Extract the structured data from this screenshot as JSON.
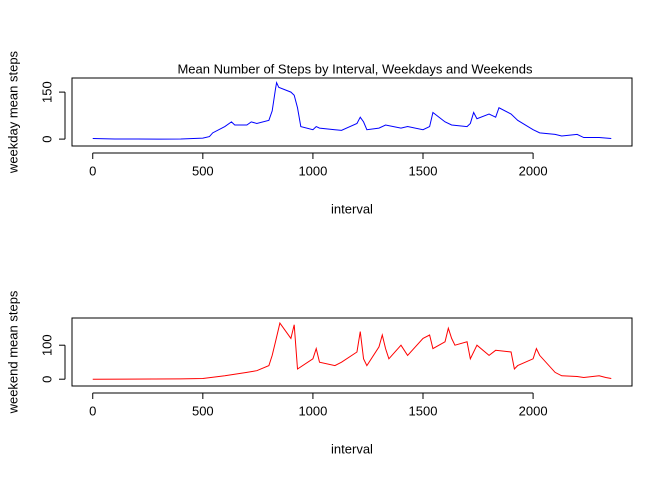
{
  "chart_data": [
    {
      "type": "line",
      "title": "Mean Number of Steps by Interval, Weekdays and Weekends",
      "x_label": "interval",
      "y_label": "weekday mean steps",
      "xlim": [
        -94.2,
        2449.2
      ],
      "xticks": [
        0,
        500,
        1000,
        1500,
        2000
      ],
      "ylim": [
        -22,
        195
      ],
      "yticks": [
        0,
        150
      ],
      "x": [
        0,
        100,
        200,
        300,
        400,
        500,
        530,
        545,
        600,
        630,
        645,
        700,
        720,
        745,
        800,
        815,
        830,
        835,
        845,
        900,
        915,
        930,
        945,
        1000,
        1015,
        1030,
        1100,
        1130,
        1200,
        1215,
        1230,
        1245,
        1300,
        1330,
        1400,
        1430,
        1500,
        1530,
        1545,
        1600,
        1630,
        1700,
        1715,
        1730,
        1745,
        1800,
        1830,
        1845,
        1900,
        1930,
        2000,
        2030,
        2100,
        2130,
        2200,
        2230,
        2300,
        2355
      ],
      "series": [
        {
          "name": "weekday",
          "color": "#0000ff",
          "values": [
            2,
            0.5,
            0.3,
            0.1,
            0.5,
            3,
            8,
            20,
            40,
            55,
            45,
            45,
            55,
            50,
            60,
            90,
            160,
            180,
            165,
            150,
            140,
            100,
            40,
            30,
            40,
            35,
            30,
            28,
            50,
            70,
            55,
            30,
            35,
            45,
            35,
            40,
            30,
            40,
            85,
            55,
            45,
            40,
            50,
            85,
            65,
            80,
            70,
            100,
            80,
            60,
            30,
            20,
            15,
            10,
            15,
            5,
            5,
            2
          ]
        }
      ]
    },
    {
      "type": "line",
      "x_label": "interval",
      "y_label": "weekend mean steps",
      "xlim": [
        -94.2,
        2449.2
      ],
      "xticks": [
        0,
        500,
        1000,
        1500,
        2000
      ],
      "ylim": [
        -20,
        180
      ],
      "yticks": [
        0,
        100
      ],
      "x": [
        0,
        400,
        500,
        600,
        700,
        745,
        800,
        815,
        830,
        850,
        900,
        915,
        930,
        1000,
        1015,
        1030,
        1100,
        1130,
        1200,
        1215,
        1230,
        1245,
        1300,
        1315,
        1330,
        1345,
        1400,
        1430,
        1500,
        1530,
        1545,
        1600,
        1615,
        1630,
        1645,
        1700,
        1715,
        1745,
        1800,
        1830,
        1900,
        1915,
        1930,
        2000,
        2015,
        2030,
        2100,
        2130,
        2200,
        2230,
        2300,
        2330,
        2355
      ],
      "series": [
        {
          "name": "weekend",
          "color": "#ff0000",
          "values": [
            0,
            1,
            2,
            10,
            20,
            25,
            40,
            70,
            110,
            165,
            120,
            160,
            30,
            60,
            90,
            50,
            40,
            50,
            80,
            140,
            60,
            40,
            95,
            130,
            90,
            60,
            100,
            70,
            120,
            130,
            90,
            110,
            150,
            120,
            100,
            110,
            60,
            100,
            70,
            85,
            80,
            30,
            40,
            60,
            90,
            70,
            20,
            10,
            8,
            5,
            10,
            5,
            2
          ]
        }
      ]
    }
  ]
}
